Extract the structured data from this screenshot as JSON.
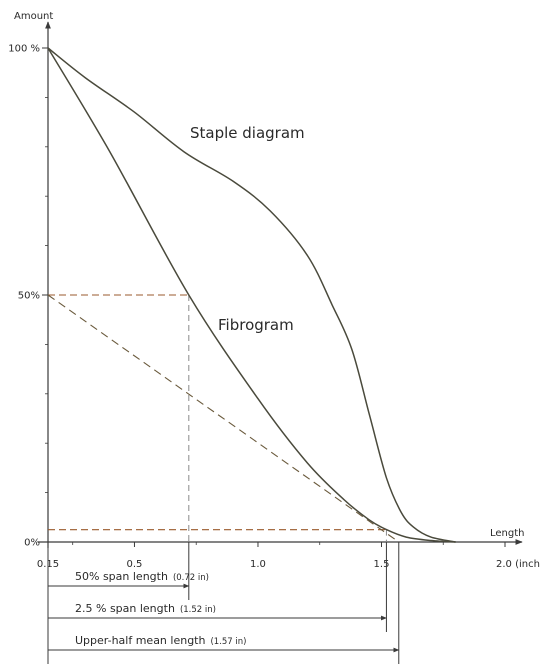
{
  "chart_data": {
    "type": "line",
    "title": "",
    "xlabel": "Length",
    "xunit": "2.0 (inch)",
    "ylabel": "Amount",
    "xlim": [
      0.15,
      2.0
    ],
    "ylim": [
      0,
      100
    ],
    "x_ticks": [
      {
        "value": 0.15,
        "label": "0.15"
      },
      {
        "value": 0.5,
        "label": "0.5"
      },
      {
        "value": 1.0,
        "label": "1.0"
      },
      {
        "value": 1.5,
        "label": "1.5"
      }
    ],
    "y_ticks": [
      {
        "value": 100,
        "label": "100 %"
      },
      {
        "value": 50,
        "label": "50%"
      },
      {
        "value": 0,
        "label": "0%"
      }
    ],
    "grid": false,
    "series": [
      {
        "name": "Staple diagram",
        "color": "#4a4a3c",
        "x": [
          0.15,
          0.3,
          0.5,
          0.7,
          0.9,
          1.05,
          1.2,
          1.3,
          1.38,
          1.45,
          1.52,
          1.58,
          1.63,
          1.7,
          1.8
        ],
        "y": [
          100,
          94,
          87,
          79,
          73,
          67,
          58,
          48,
          39,
          26,
          13,
          6,
          3,
          1,
          0
        ]
      },
      {
        "name": "Fibrogram",
        "color": "#4a4a3c",
        "x": [
          0.15,
          0.4,
          0.72,
          1.0,
          1.2,
          1.35,
          1.45,
          1.52,
          1.6,
          1.7,
          1.8
        ],
        "y": [
          100,
          79,
          50,
          29,
          16,
          8.5,
          4.5,
          2.5,
          1,
          0.3,
          0
        ]
      }
    ],
    "reference_lines": [
      {
        "kind": "horizontal",
        "y": 50,
        "x_end": 0.72
      },
      {
        "kind": "vertical",
        "x": 0.72,
        "y_top": 50
      },
      {
        "kind": "horizontal",
        "y": 2.5,
        "x_end": 1.52
      },
      {
        "kind": "vertical",
        "x": 1.52,
        "y_top": 2.5
      },
      {
        "kind": "tangent",
        "from": [
          0.15,
          50
        ],
        "to": [
          1.57,
          0
        ]
      }
    ],
    "annotations": [
      {
        "text": "50% span length",
        "value_text": "(0.72 in)",
        "x_start": 0.15,
        "x_end": 0.72
      },
      {
        "text": "2.5 % span length",
        "value_text": "(1.52 in)",
        "x_start": 0.15,
        "x_end": 1.52
      },
      {
        "text": "Upper-half mean length",
        "value_text": "(1.57 in)",
        "x_start": 0.15,
        "x_end": 1.57
      }
    ]
  },
  "colors": {
    "axis": "#3a3a3a",
    "curve": "#4a4a3c",
    "reference": "#9a5a2c",
    "tangent": "#6a5a3c",
    "dashed_vertical": "#8a8a8a"
  }
}
